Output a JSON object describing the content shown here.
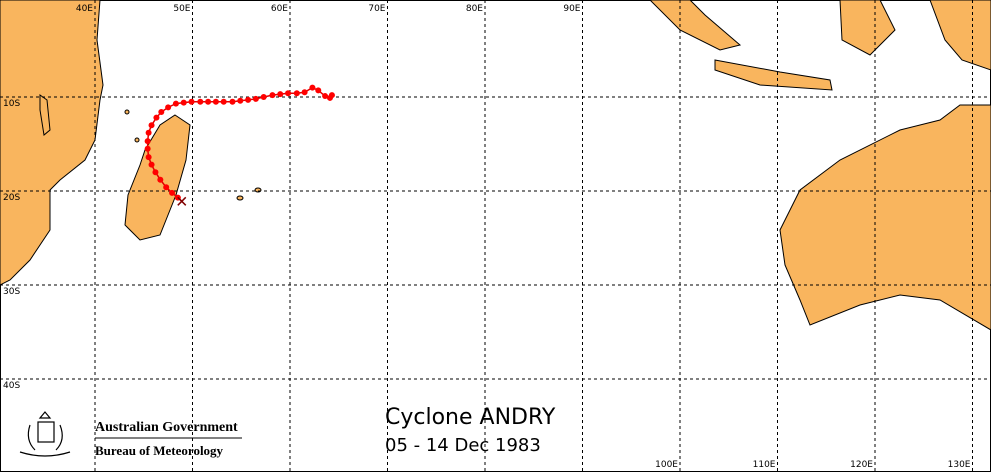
{
  "map": {
    "lon_lines": [
      {
        "value": 40,
        "label": "40E"
      },
      {
        "value": 50,
        "label": "50E"
      },
      {
        "value": 60,
        "label": "60E"
      },
      {
        "value": 70,
        "label": "70E"
      },
      {
        "value": 80,
        "label": "80E"
      },
      {
        "value": 90,
        "label": "90E"
      },
      {
        "value": 100,
        "label": "100E"
      },
      {
        "value": 110,
        "label": "110E"
      },
      {
        "value": 120,
        "label": "120E"
      },
      {
        "value": 130,
        "label": "130E"
      }
    ],
    "lat_lines": [
      {
        "value": 10,
        "label": "10S"
      },
      {
        "value": 20,
        "label": "20S"
      },
      {
        "value": 30,
        "label": "30S"
      },
      {
        "value": 40,
        "label": "40S"
      }
    ],
    "track": {
      "lon": [
        64.3,
        64.1,
        63.6,
        62.9,
        62.3,
        61.5,
        60.7,
        59.8,
        59.0,
        58.2,
        57.3,
        56.5,
        55.7,
        54.9,
        54.1,
        53.2,
        52.4,
        51.6,
        50.8,
        49.9,
        49.1,
        48.3,
        47.5,
        46.8,
        46.3,
        45.8,
        45.5,
        45.4,
        45.4,
        45.5,
        45.8,
        46.2,
        46.7,
        47.3,
        47.9,
        48.5,
        48.9
      ],
      "lat": [
        9.8,
        10.1,
        9.9,
        9.3,
        9.0,
        9.5,
        9.6,
        9.6,
        9.7,
        9.8,
        10.0,
        10.2,
        10.3,
        10.4,
        10.5,
        10.5,
        10.5,
        10.5,
        10.5,
        10.5,
        10.6,
        10.7,
        11.1,
        11.6,
        12.2,
        13.0,
        13.8,
        14.7,
        15.5,
        16.4,
        17.2,
        18.0,
        18.8,
        19.6,
        20.2,
        20.7,
        21.1
      ]
    }
  },
  "title": "Cyclone ANDRY",
  "dates": "05 - 14 Dec 1983",
  "logo": {
    "line1": "Australian Government",
    "line2": "Bureau of Meteorology"
  }
}
